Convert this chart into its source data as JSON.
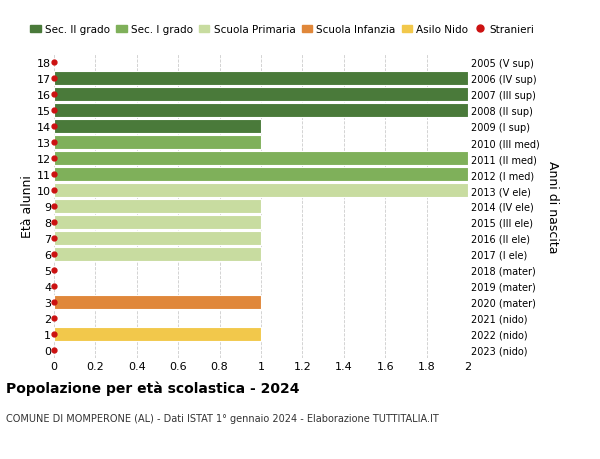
{
  "ages": [
    0,
    1,
    2,
    3,
    4,
    5,
    6,
    7,
    8,
    9,
    10,
    11,
    12,
    13,
    14,
    15,
    16,
    17,
    18
  ],
  "birth_years": [
    "2023 (nido)",
    "2022 (nido)",
    "2021 (nido)",
    "2020 (mater)",
    "2019 (mater)",
    "2018 (mater)",
    "2017 (I ele)",
    "2016 (II ele)",
    "2015 (III ele)",
    "2014 (IV ele)",
    "2013 (V ele)",
    "2012 (I med)",
    "2011 (II med)",
    "2010 (III med)",
    "2009 (I sup)",
    "2008 (II sup)",
    "2007 (III sup)",
    "2006 (IV sup)",
    "2005 (V sup)"
  ],
  "bar_values": [
    0,
    1.0,
    0,
    1.0,
    0,
    0,
    1.0,
    1.0,
    1.0,
    1.0,
    2.0,
    2.0,
    2.0,
    1.0,
    1.0,
    2.0,
    2.0,
    2.0,
    0
  ],
  "bar_colors": [
    "none",
    "#f2c84b",
    "none",
    "#e0873a",
    "none",
    "none",
    "#c8dca0",
    "#c8dca0",
    "#c8dca0",
    "#c8dca0",
    "#c8dca0",
    "#7fb05a",
    "#7fb05a",
    "#7fb05a",
    "#4a7a3a",
    "#4a7a3a",
    "#4a7a3a",
    "#4a7a3a",
    "none"
  ],
  "legend_labels": [
    "Sec. II grado",
    "Sec. I grado",
    "Scuola Primaria",
    "Scuola Infanzia",
    "Asilo Nido",
    "Stranieri"
  ],
  "legend_colors": [
    "#4a7a3a",
    "#7fb05a",
    "#c8dca0",
    "#e0873a",
    "#f2c84b",
    "#cc1111"
  ],
  "title": "Popolazione per età scolastica - 2024",
  "subtitle": "COMUNE DI MOMPERONE (AL) - Dati ISTAT 1° gennaio 2024 - Elaborazione TUTTITALIA.IT",
  "ylabel_left": "Età alunni",
  "ylabel_right": "Anni di nascita",
  "xlim": [
    0,
    2.0
  ],
  "xticks": [
    0,
    0.2,
    0.4,
    0.6,
    0.8,
    1.0,
    1.2,
    1.4,
    1.6,
    1.8,
    2.0
  ],
  "background_color": "#ffffff",
  "grid_color": "#cccccc",
  "bar_height": 0.85,
  "stranieri_color": "#cc1111"
}
